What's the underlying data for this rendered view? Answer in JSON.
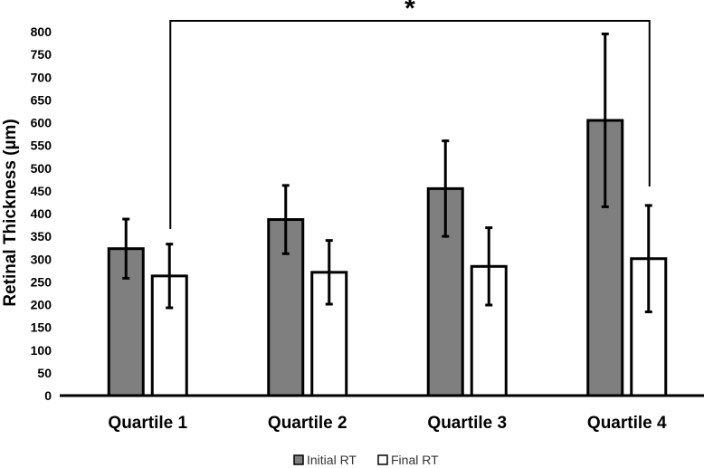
{
  "chart_data": {
    "type": "bar",
    "categories": [
      "Quartile 1",
      "Quartile 2",
      "Quartile 3",
      "Quartile 4"
    ],
    "series": [
      {
        "name": "Initial RT",
        "values": [
          323,
          387,
          455,
          605
        ],
        "error": [
          65,
          75,
          105,
          190
        ],
        "color": "#7f7f7f"
      },
      {
        "name": "Final RT",
        "values": [
          263,
          271,
          284,
          301
        ],
        "error": [
          70,
          70,
          85,
          117
        ],
        "color": "#ffffff"
      }
    ],
    "title": "",
    "xlabel": "",
    "ylabel": "Retinal Thickness (µm)",
    "ylim": [
      0,
      800
    ],
    "yticks": [
      0,
      50,
      100,
      150,
      200,
      250,
      300,
      350,
      400,
      450,
      500,
      550,
      600,
      650,
      700,
      750,
      800
    ],
    "grid": false,
    "legend": "bottom-center",
    "annotation": {
      "text": "*",
      "from": "Quartile 1 Final RT",
      "to": "Quartile 4 Final RT"
    }
  }
}
